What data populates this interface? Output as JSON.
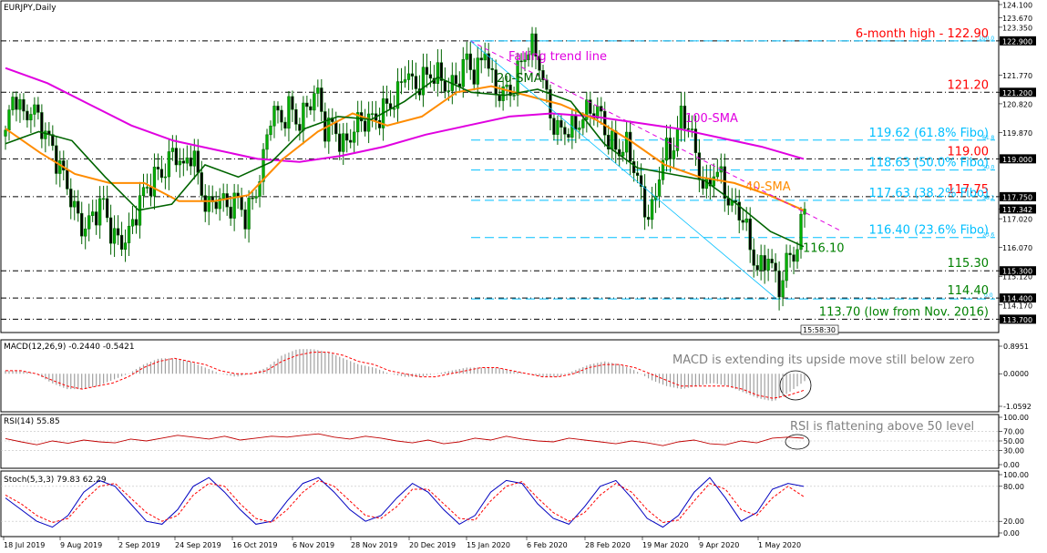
{
  "chart_data": {
    "type": "candlestick",
    "symbol_label": "EURJPY,Daily",
    "time_label": "15:58:30",
    "main_price_range": [
      113.5,
      124.1
    ],
    "x_dates": [
      "18 Jul 2019",
      "9 Aug 2019",
      "2 Sep 2019",
      "24 Sep 2019",
      "16 Oct 2019",
      "6 Nov 2019",
      "28 Nov 2019",
      "20 Dec 2019",
      "15 Jan 2020",
      "6 Feb 2020",
      "28 Feb 2020",
      "19 Mar 2020",
      "9 Apr 2020",
      "1 May 2020"
    ],
    "price_axis_ticks": [
      "124.100",
      "123.670",
      "123.350",
      "122.900",
      "121.770",
      "121.200",
      "120.820",
      "119.870",
      "119.000",
      "117.750",
      "117.342",
      "117.020",
      "116.070",
      "115.300",
      "115.120",
      "114.400",
      "114.170",
      "113.700"
    ],
    "levels": [
      {
        "label": "6-month high - 122.90",
        "price": 122.9,
        "color": "#ff0000",
        "style": "dash-dot"
      },
      {
        "label": "121.20",
        "price": 121.2,
        "color": "#ff0000",
        "style": "dash-dot"
      },
      {
        "label": "119.62 (61.8% Fibo)",
        "price": 119.62,
        "color": "#00bfff",
        "style": "dashed",
        "fib_tag": "61.8"
      },
      {
        "label": "119.00",
        "price": 119.0,
        "color": "#ff0000",
        "style": "dash-dot"
      },
      {
        "label": "118.63 (50.0% Fibo)",
        "price": 118.63,
        "color": "#00bfff",
        "style": "dashed",
        "fib_tag": "50.0"
      },
      {
        "label": "117.75",
        "price": 117.75,
        "color": "#ff0000",
        "style": "dash-dot"
      },
      {
        "label": "117.63 (38.2% Fibo)",
        "price": 117.63,
        "color": "#00bfff",
        "style": "dashed",
        "fib_tag": "38.2"
      },
      {
        "label": "116.40 (23.6% Fibo)",
        "price": 116.4,
        "color": "#00bfff",
        "style": "dashed",
        "fib_tag": "23.6"
      },
      {
        "label": "116.10",
        "price": 116.1,
        "color": "#008000",
        "style": "none"
      },
      {
        "label": "115.30",
        "price": 115.3,
        "color": "#008000",
        "style": "dash-dot"
      },
      {
        "label": "114.40",
        "price": 114.4,
        "color": "#008000",
        "style": "dash-dot"
      },
      {
        "label": "113.70 (low from Nov. 2016)",
        "price": 113.7,
        "color": "#008000",
        "style": "dash-dot"
      }
    ],
    "fib_top_tag": "100.0",
    "fib_bottom_tag": "0.0",
    "annotations": {
      "trend_line": "Falling trend line",
      "sma20": "20-SMA",
      "sma40": "40-SMA",
      "sma100": "100-SMA"
    },
    "price_path": [
      119.8,
      121.0,
      120.2,
      120.9,
      120.4,
      119.5,
      118.5,
      118.0,
      117.3,
      116.9,
      117.1,
      117.3,
      116.4,
      116.5,
      116.7,
      117.4,
      117.8,
      118.5,
      118.9,
      119.5,
      118.4,
      119.1,
      118.0,
      117.6,
      117.9,
      117.1,
      117.5,
      117.2,
      118.0,
      118.9,
      120.5,
      120.0,
      120.9,
      120.4,
      120.7,
      121.0,
      119.9,
      120.3,
      119.6,
      119.8,
      120.0,
      120.2,
      120.6,
      121.0,
      120.8,
      121.7,
      121.3,
      121.9,
      122.0,
      121.5,
      121.0,
      121.7,
      122.6,
      121.8,
      122.5,
      121.0,
      121.3,
      121.5,
      122.2,
      122.5,
      122.2,
      121.0,
      120.2,
      120.0,
      119.7,
      120.2,
      120.9,
      120.7,
      119.5,
      119.0,
      119.3,
      118.8,
      117.5,
      117.2,
      118.9,
      119.1,
      120.6,
      120.4,
      118.5,
      117.6,
      118.8,
      118.2,
      117.5,
      117.0,
      115.6,
      115.3,
      116.2,
      114.7,
      115.4,
      115.7,
      117.3
    ],
    "sma_20": [
      119.5,
      119.9,
      119.6,
      118.4,
      117.3,
      117.5,
      118.8,
      118.4,
      118.9,
      120.0,
      120.4,
      120.3,
      120.9,
      121.7,
      121.2,
      121.1,
      121.3,
      120.9,
      119.5,
      118.7,
      118.5,
      118.3,
      117.5,
      116.6,
      116.1
    ],
    "sma_40": [
      120.0,
      119.2,
      118.5,
      118.2,
      118.2,
      117.6,
      117.6,
      117.8,
      119.0,
      119.9,
      120.5,
      120.1,
      120.4,
      121.2,
      121.4,
      121.1,
      120.8,
      120.3,
      119.6,
      118.8,
      118.4,
      118.2,
      117.8,
      117.3
    ],
    "sma_100": [
      122.0,
      121.5,
      120.8,
      120.1,
      119.6,
      119.3,
      119.0,
      118.9,
      119.1,
      119.4,
      119.8,
      120.1,
      120.4,
      120.5,
      120.4,
      120.2,
      120.0,
      119.7,
      119.4,
      119.0
    ],
    "macd": {
      "label": "MACD(12,26,9) -0.2440 -0.5421",
      "axis_ticks": [
        "0.8951",
        "0.0000",
        "-1.0592"
      ],
      "range": [
        -1.0592,
        0.8951
      ],
      "note": "MACD is extending its upside move still below zero",
      "histogram": [
        0.1,
        0.1,
        0.0,
        -0.3,
        -0.5,
        -0.5,
        -0.4,
        -0.2,
        0.0,
        0.3,
        0.5,
        0.5,
        0.4,
        0.2,
        0.0,
        -0.1,
        0.0,
        0.2,
        0.6,
        0.8,
        0.8,
        0.7,
        0.5,
        0.3,
        0.2,
        0.0,
        -0.1,
        -0.1,
        0.0,
        0.1,
        0.2,
        0.2,
        0.2,
        0.1,
        0.0,
        -0.1,
        -0.1,
        0.1,
        0.3,
        0.4,
        0.3,
        0.1,
        -0.2,
        -0.4,
        -0.5,
        -0.4,
        -0.3,
        -0.4,
        -0.6,
        -0.8,
        -0.9,
        -0.6,
        -0.24
      ],
      "signal": [
        0.1,
        0.1,
        0.0,
        -0.2,
        -0.4,
        -0.5,
        -0.4,
        -0.3,
        -0.1,
        0.2,
        0.4,
        0.5,
        0.4,
        0.3,
        0.1,
        0.0,
        0.0,
        0.1,
        0.4,
        0.6,
        0.7,
        0.7,
        0.6,
        0.4,
        0.3,
        0.1,
        0.0,
        -0.1,
        -0.1,
        0.0,
        0.1,
        0.2,
        0.2,
        0.1,
        0.0,
        -0.1,
        -0.1,
        0.0,
        0.2,
        0.3,
        0.3,
        0.2,
        0.0,
        -0.2,
        -0.4,
        -0.4,
        -0.4,
        -0.4,
        -0.5,
        -0.7,
        -0.8,
        -0.7,
        -0.54
      ]
    },
    "rsi": {
      "label": "RSI(14) 55.85",
      "axis_ticks": [
        "100.00",
        "70.00",
        "50.00",
        "30.00",
        "0.00"
      ],
      "note": "RSI is flattening above 50 level",
      "values": [
        55,
        48,
        42,
        50,
        45,
        52,
        48,
        46,
        54,
        50,
        56,
        62,
        58,
        54,
        60,
        52,
        56,
        60,
        58,
        62,
        65,
        58,
        54,
        60,
        56,
        50,
        46,
        52,
        44,
        48,
        56,
        52,
        60,
        54,
        50,
        48,
        56,
        52,
        48,
        44,
        50,
        46,
        40,
        48,
        52,
        44,
        42,
        50,
        46,
        56,
        58,
        55.85
      ]
    },
    "stoch": {
      "label": "Stoch(5,3,3) 79.83 62.29",
      "axis_ticks": [
        "100.00",
        "80.00",
        "20.00",
        "0.00"
      ],
      "k": [
        60,
        40,
        20,
        10,
        30,
        70,
        90,
        80,
        50,
        20,
        15,
        40,
        80,
        95,
        70,
        40,
        15,
        20,
        55,
        85,
        95,
        70,
        40,
        20,
        30,
        60,
        85,
        70,
        40,
        15,
        30,
        70,
        90,
        85,
        50,
        25,
        15,
        45,
        80,
        90,
        60,
        25,
        10,
        30,
        70,
        95,
        60,
        20,
        35,
        75,
        85,
        79.83
      ],
      "d": [
        65,
        50,
        30,
        18,
        25,
        55,
        80,
        85,
        60,
        35,
        20,
        30,
        65,
        85,
        80,
        50,
        25,
        18,
        40,
        70,
        90,
        80,
        55,
        30,
        25,
        45,
        75,
        75,
        50,
        25,
        22,
        55,
        80,
        88,
        60,
        35,
        20,
        35,
        65,
        85,
        70,
        40,
        18,
        22,
        55,
        85,
        75,
        40,
        30,
        60,
        80,
        62.29
      ]
    }
  }
}
